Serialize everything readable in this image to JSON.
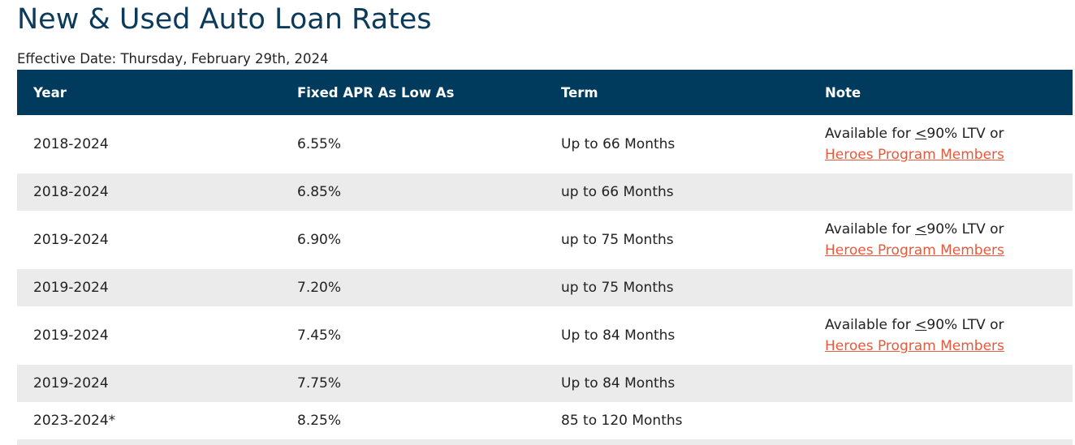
{
  "page": {
    "title": "New & Used Auto Loan Rates",
    "effective_date": "Effective Date: Thursday, February 29th, 2024"
  },
  "table": {
    "headers": [
      "Year",
      "Fixed APR As Low As",
      "Term",
      "Note"
    ],
    "rows": [
      {
        "year": "2018-2024",
        "apr": "6.55%",
        "term": "Up to 66 Months",
        "note_prefix": "Available for ",
        "note_le": "<",
        "note_suffix": "90% LTV or",
        "note_link": "Heroes Program Members"
      },
      {
        "year": "2018-2024",
        "apr": "6.85%",
        "term": "up to 66 Months"
      },
      {
        "year": "2019-2024",
        "apr": "6.90%",
        "term": "up to 75 Months",
        "note_prefix": "Available for ",
        "note_le": "<",
        "note_suffix": "90% LTV or",
        "note_link": "Heroes Program Members"
      },
      {
        "year": "2019-2024",
        "apr": "7.20%",
        "term": "up to 75 Months"
      },
      {
        "year": "2019-2024",
        "apr": "7.45%",
        "term": "Up to 84 Months",
        "note_prefix": "Available for ",
        "note_le": "<",
        "note_suffix": "90% LTV or",
        "note_link": "Heroes Program Members"
      },
      {
        "year": "2019-2024",
        "apr": "7.75%",
        "term": "Up to 84 Months"
      },
      {
        "year": "2023-2024*",
        "apr": "8.25%",
        "term": "85 to 120 Months"
      }
    ]
  },
  "colors": {
    "title": "#0b3a5a",
    "header_bg": "#003a5d",
    "header_text": "#ffffff",
    "alt_row_bg": "#ebebeb",
    "link": "#e8593c"
  }
}
